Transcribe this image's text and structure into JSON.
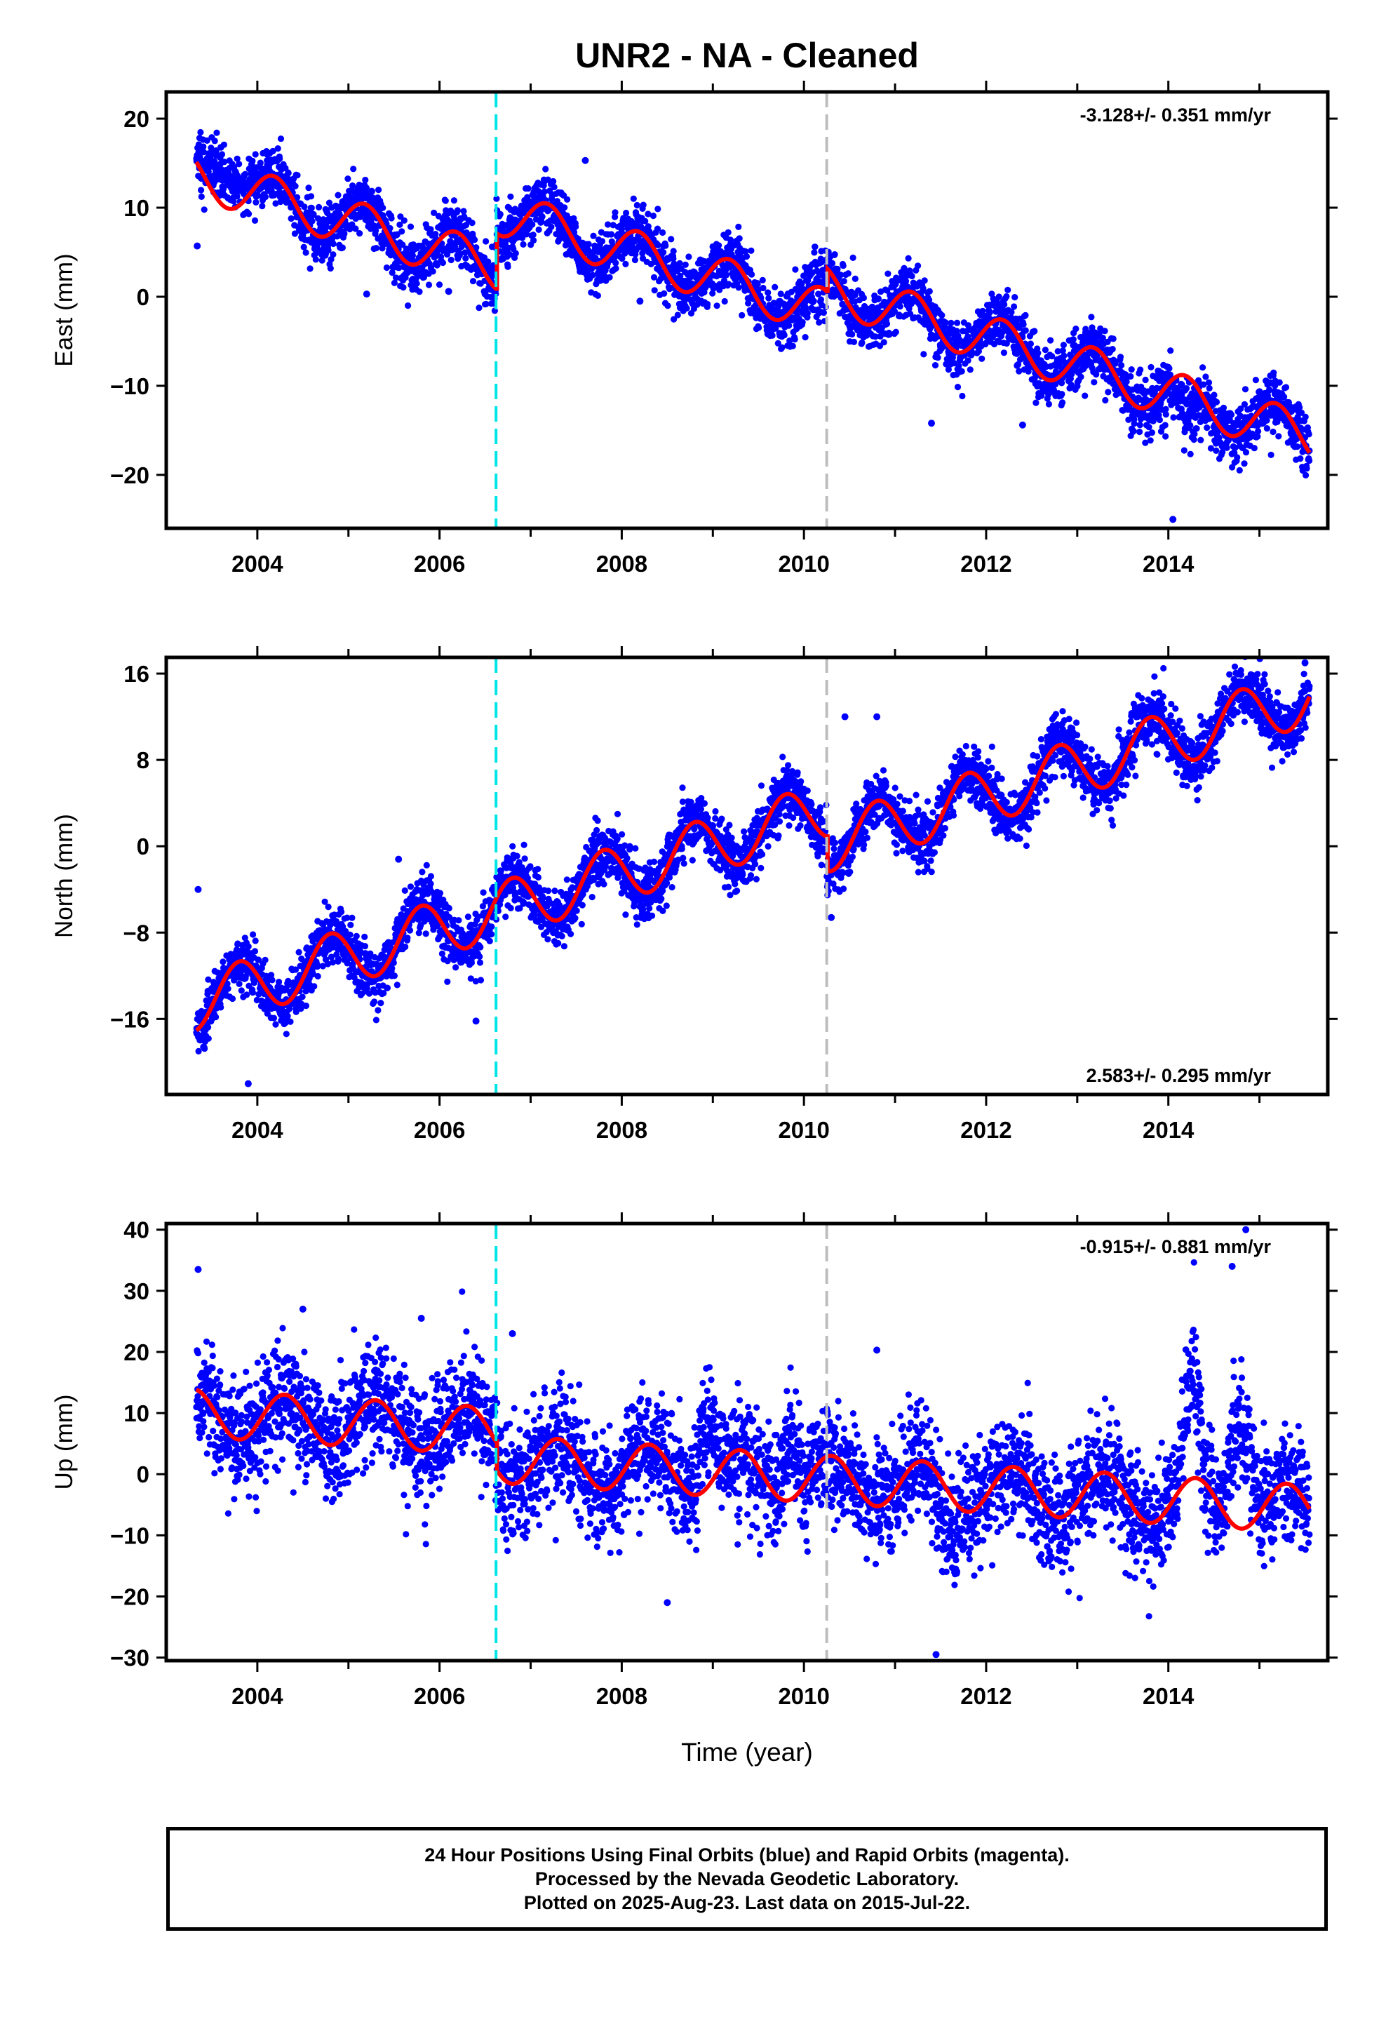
{
  "title": "UNR2  - NA - Cleaned",
  "xlabel": "Time (year)",
  "x_ticks": [
    2004,
    2006,
    2008,
    2010,
    2012,
    2014
  ],
  "colors": {
    "points": "#0000ff",
    "model": "#ff0000",
    "event_cyan": "#00e5e5",
    "event_gray": "#bdbdbd"
  },
  "chart_data": [
    {
      "type": "scatter",
      "ylabel": "East (mm)",
      "rate_text": "-3.128+/- 0.351 mm/yr",
      "rate_position": "top-right",
      "xlim": [
        2003.0,
        2015.75
      ],
      "ylim": [
        -26,
        23
      ],
      "y_ticks": [
        20,
        10,
        0,
        -10,
        -20
      ],
      "vlines": [
        {
          "x": 2006.62,
          "style": "cyan-dashed"
        },
        {
          "x": 2010.25,
          "style": "gray-dashed"
        }
      ],
      "model": {
        "x0": 2003.33,
        "y0": 13.6,
        "trend": -3.128,
        "annual_amp": 2.6,
        "annual_phase": 0.93,
        "offsets": [
          {
            "x": 2006.62,
            "dy": 6.3
          },
          {
            "x": 2010.25,
            "dy": 2.6
          }
        ]
      },
      "anomalies": [
        {
          "x_from": 2003.3,
          "x_to": 2004.0,
          "dy": 3.0
        },
        {
          "x_from": 2014.0,
          "x_to": 2014.4,
          "dy": -4.0
        }
      ],
      "scatter_sd": 1.6,
      "outliers": [
        [
          2003.34,
          5.7
        ],
        [
          2005.2,
          0.3
        ],
        [
          2006.1,
          0.6
        ],
        [
          2007.6,
          15.3
        ],
        [
          2008.2,
          -0.5
        ],
        [
          2011.4,
          -14.2
        ],
        [
          2012.4,
          -14.4
        ],
        [
          2014.05,
          -25.0
        ]
      ],
      "series": [
        {
          "name": "Final Orbits",
          "color": "#0000ff"
        },
        {
          "name": "Model",
          "color": "#ff0000"
        }
      ]
    },
    {
      "type": "scatter",
      "ylabel": "North (mm)",
      "rate_text": "2.583+/- 0.295 mm/yr",
      "rate_position": "bottom-right",
      "xlim": [
        2003.0,
        2015.75
      ],
      "ylim": [
        -23,
        17.5
      ],
      "y_ticks": [
        16,
        8,
        0,
        -8,
        -16
      ],
      "y_tick_labels": [
        "16",
        "8",
        "0",
        "−8",
        "−16"
      ],
      "vlines": [
        {
          "x": 2006.62,
          "style": "cyan-dashed"
        },
        {
          "x": 2010.25,
          "style": "gray-dashed"
        }
      ],
      "model": {
        "x0": 2003.33,
        "y0": -14.5,
        "trend": 2.583,
        "annual_amp": 2.6,
        "annual_phase": 0.55,
        "offsets": [
          {
            "x": 2010.25,
            "dy": -3.2
          }
        ]
      },
      "anomalies": [],
      "scatter_sd": 1.3,
      "outliers": [
        [
          2003.35,
          -4.0
        ],
        [
          2003.9,
          -22.0
        ],
        [
          2005.55,
          -1.2
        ],
        [
          2006.4,
          -16.2
        ],
        [
          2010.3,
          -6.6
        ],
        [
          2010.45,
          12.0
        ],
        [
          2010.8,
          12.0
        ],
        [
          2015.5,
          17.0
        ]
      ],
      "series": [
        {
          "name": "Final Orbits",
          "color": "#0000ff"
        },
        {
          "name": "Model",
          "color": "#ff0000"
        }
      ]
    },
    {
      "type": "scatter",
      "ylabel": "Up (mm)",
      "rate_text": "-0.915+/- 0.881 mm/yr",
      "rate_position": "top-right",
      "xlim": [
        2003.0,
        2015.75
      ],
      "ylim": [
        -30.5,
        41
      ],
      "y_ticks": [
        40,
        30,
        20,
        10,
        0,
        -10,
        -20,
        -30
      ],
      "vlines": [
        {
          "x": 2006.62,
          "style": "cyan-dashed"
        },
        {
          "x": 2010.25,
          "style": "gray-dashed"
        }
      ],
      "model": {
        "x0": 2003.33,
        "y0": 10.0,
        "trend": -0.915,
        "annual_amp": 3.9,
        "annual_phase": 0.05,
        "offsets": [
          {
            "x": 2006.62,
            "dy": -4.5
          }
        ]
      },
      "anomalies": [
        {
          "x_from": 2008.8,
          "x_to": 2009.1,
          "dy": 10.0
        },
        {
          "x_from": 2009.7,
          "x_to": 2010.0,
          "dy": 9.0
        },
        {
          "x_from": 2014.1,
          "x_to": 2014.4,
          "dy": 17.0
        },
        {
          "x_from": 2014.6,
          "x_to": 2015.0,
          "dy": 17.0
        },
        {
          "x_from": 2011.3,
          "x_to": 2011.8,
          "dy": -6.0
        }
      ],
      "scatter_sd": 4.6,
      "outliers": [
        [
          2003.35,
          33.5
        ],
        [
          2004.5,
          27.0
        ],
        [
          2005.8,
          25.5
        ],
        [
          2006.8,
          23.0
        ],
        [
          2010.8,
          20.3
        ],
        [
          2011.45,
          -29.5
        ],
        [
          2014.7,
          34.0
        ],
        [
          2014.85,
          40.0
        ],
        [
          2008.5,
          -21.0
        ]
      ],
      "series": [
        {
          "name": "Final Orbits",
          "color": "#0000ff"
        },
        {
          "name": "Model",
          "color": "#ff0000"
        }
      ]
    }
  ],
  "footer": {
    "line1": "24 Hour Positions Using Final Orbits (blue) and Rapid Orbits (magenta).",
    "line2": "Processed by the Nevada Geodetic Laboratory.",
    "line3": "Plotted on 2025-Aug-23. Last data on 2015-Jul-22."
  }
}
